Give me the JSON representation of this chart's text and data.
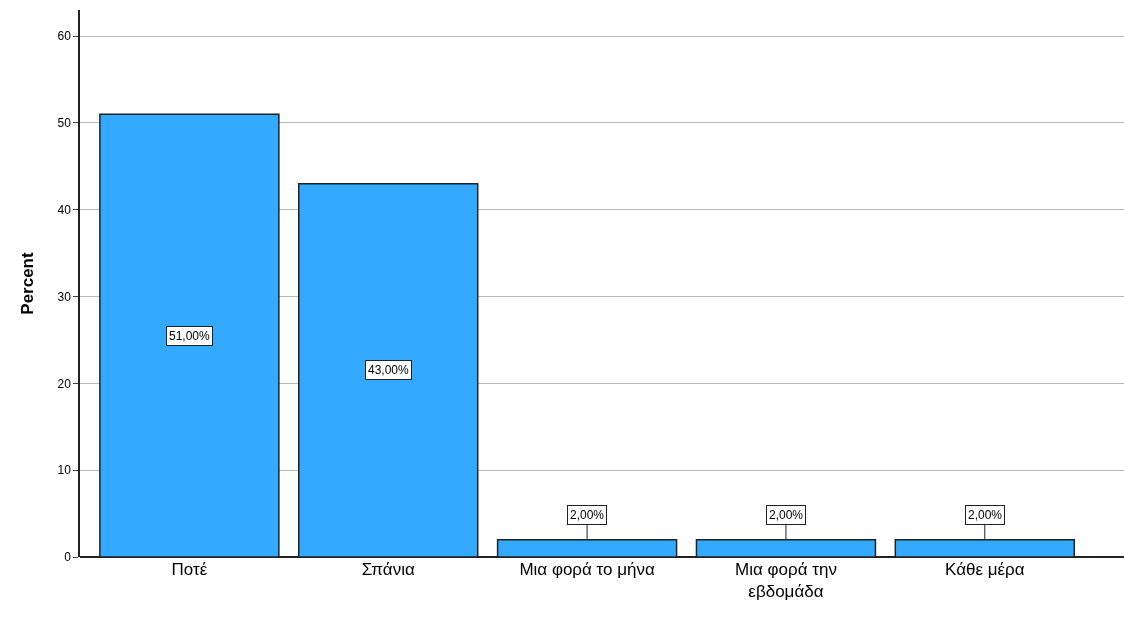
{
  "chart_data": {
    "type": "bar",
    "ylabel": "Percent",
    "categories": [
      "Ποτέ",
      "Σπάνια",
      "Μια φορά το μήνα",
      "Μια φορά την εβδομάδα",
      "Κάθε μέρα"
    ],
    "values": [
      51,
      43,
      2,
      2,
      2
    ],
    "value_labels": [
      "51,00%",
      "43,00%",
      "2,00%",
      "2,00%",
      "2,00%"
    ],
    "color": "#33aaff",
    "ylim": [
      0,
      63
    ],
    "yticks": [
      0,
      10,
      20,
      30,
      40,
      50,
      60
    ],
    "grid": "y"
  }
}
